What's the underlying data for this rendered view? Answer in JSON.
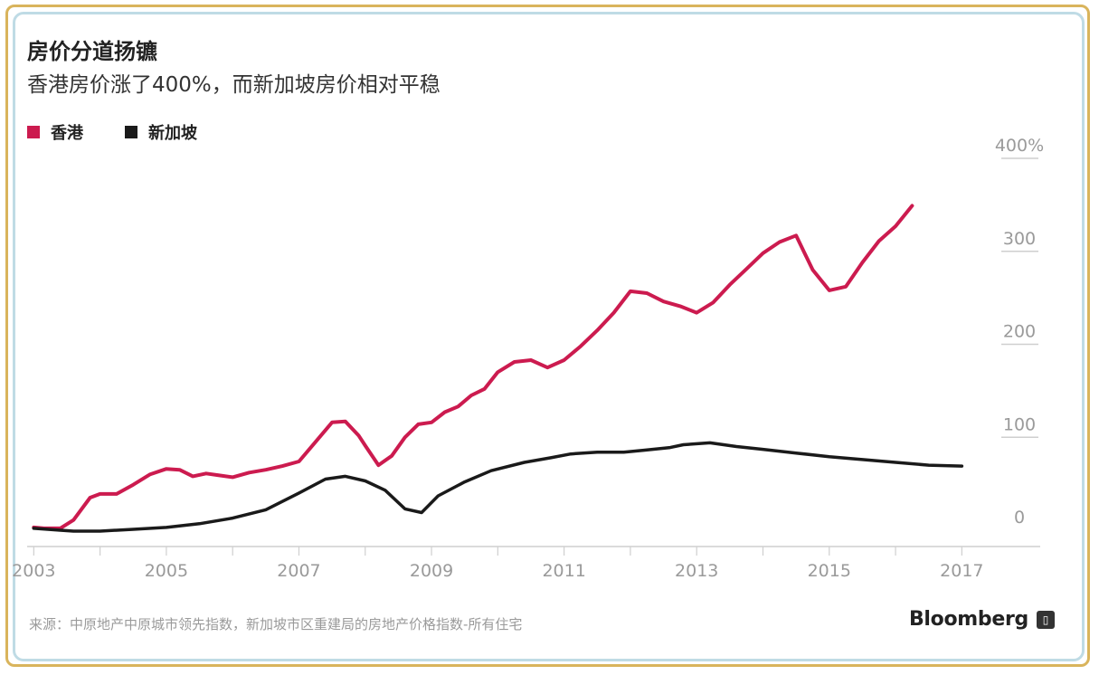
{
  "chart_data": {
    "type": "line",
    "title": "房价分道扬镳",
    "subtitle": "香港房价涨了400%，而新加坡房价相对平稳",
    "xlabel": "",
    "ylabel": "",
    "xlim": [
      2002.9,
      2017.5
    ],
    "ylim": [
      0,
      400
    ],
    "x_ticks": [
      2003,
      2005,
      2007,
      2009,
      2011,
      2013,
      2015,
      2017
    ],
    "y_ticks": [
      0,
      100,
      200,
      300,
      400
    ],
    "y_tick_labels": [
      "0",
      "100",
      "200",
      "300",
      "400%"
    ],
    "legend_position": "top-left",
    "grid": false,
    "series": [
      {
        "name": "香港",
        "color": "#cc1b4f",
        "points": [
          [
            2003.0,
            3
          ],
          [
            2003.15,
            2
          ],
          [
            2003.4,
            2
          ],
          [
            2003.6,
            11
          ],
          [
            2003.85,
            35
          ],
          [
            2004.0,
            39
          ],
          [
            2004.25,
            39
          ],
          [
            2004.5,
            49
          ],
          [
            2004.75,
            60
          ],
          [
            2005.0,
            66
          ],
          [
            2005.2,
            65
          ],
          [
            2005.4,
            58
          ],
          [
            2005.6,
            61
          ],
          [
            2005.8,
            59
          ],
          [
            2006.0,
            57
          ],
          [
            2006.25,
            62
          ],
          [
            2006.5,
            65
          ],
          [
            2006.75,
            69
          ],
          [
            2007.0,
            74
          ],
          [
            2007.25,
            95
          ],
          [
            2007.5,
            116
          ],
          [
            2007.7,
            117
          ],
          [
            2007.9,
            102
          ],
          [
            2008.0,
            91
          ],
          [
            2008.2,
            70
          ],
          [
            2008.4,
            80
          ],
          [
            2008.6,
            100
          ],
          [
            2008.8,
            114
          ],
          [
            2009.0,
            116
          ],
          [
            2009.2,
            127
          ],
          [
            2009.4,
            133
          ],
          [
            2009.6,
            145
          ],
          [
            2009.8,
            152
          ],
          [
            2010.0,
            170
          ],
          [
            2010.25,
            181
          ],
          [
            2010.5,
            183
          ],
          [
            2010.75,
            175
          ],
          [
            2011.0,
            183
          ],
          [
            2011.25,
            198
          ],
          [
            2011.5,
            215
          ],
          [
            2011.75,
            234
          ],
          [
            2012.0,
            257
          ],
          [
            2012.25,
            255
          ],
          [
            2012.5,
            246
          ],
          [
            2012.75,
            241
          ],
          [
            2013.0,
            234
          ],
          [
            2013.25,
            245
          ],
          [
            2013.5,
            264
          ],
          [
            2013.75,
            281
          ],
          [
            2014.0,
            298
          ],
          [
            2014.25,
            310
          ],
          [
            2014.5,
            317
          ],
          [
            2014.75,
            280
          ],
          [
            2015.0,
            258
          ],
          [
            2015.25,
            262
          ],
          [
            2015.5,
            288
          ],
          [
            2015.75,
            311
          ],
          [
            2016.0,
            327
          ],
          [
            2016.25,
            349
          ]
        ]
      },
      {
        "name": "新加坡",
        "color": "#1a1a1a",
        "points": [
          [
            2003.0,
            2
          ],
          [
            2003.4,
            0
          ],
          [
            2003.6,
            -1
          ],
          [
            2004.0,
            -1
          ],
          [
            2004.5,
            1
          ],
          [
            2005.0,
            3
          ],
          [
            2005.5,
            7
          ],
          [
            2006.0,
            13
          ],
          [
            2006.5,
            22
          ],
          [
            2007.0,
            40
          ],
          [
            2007.4,
            55
          ],
          [
            2007.7,
            58
          ],
          [
            2008.0,
            53
          ],
          [
            2008.3,
            43
          ],
          [
            2008.6,
            23
          ],
          [
            2008.85,
            19
          ],
          [
            2009.1,
            37
          ],
          [
            2009.5,
            52
          ],
          [
            2009.9,
            64
          ],
          [
            2010.4,
            73
          ],
          [
            2010.8,
            78
          ],
          [
            2011.1,
            82
          ],
          [
            2011.5,
            84
          ],
          [
            2011.9,
            84
          ],
          [
            2012.2,
            86
          ],
          [
            2012.6,
            89
          ],
          [
            2012.8,
            92
          ],
          [
            2013.2,
            94
          ],
          [
            2013.6,
            90
          ],
          [
            2014.0,
            87
          ],
          [
            2014.5,
            83
          ],
          [
            2015.0,
            79
          ],
          [
            2015.5,
            76
          ],
          [
            2016.0,
            73
          ],
          [
            2016.5,
            70
          ],
          [
            2017.0,
            69
          ]
        ]
      }
    ]
  },
  "legend": [
    {
      "label": "香港",
      "color": "#cc1b4f"
    },
    {
      "label": "新加坡",
      "color": "#1a1a1a"
    }
  ],
  "source": "来源：中原地产中原城市领先指数，新加坡市区重建局的房地产价格指数-所有住宅",
  "brand": "Bloomberg",
  "colors": {
    "outer_frame": "#d9b45c",
    "inner_frame": "#bfdbe5",
    "axis": "#cfcfcf",
    "tick_text": "#9a9a9a"
  }
}
